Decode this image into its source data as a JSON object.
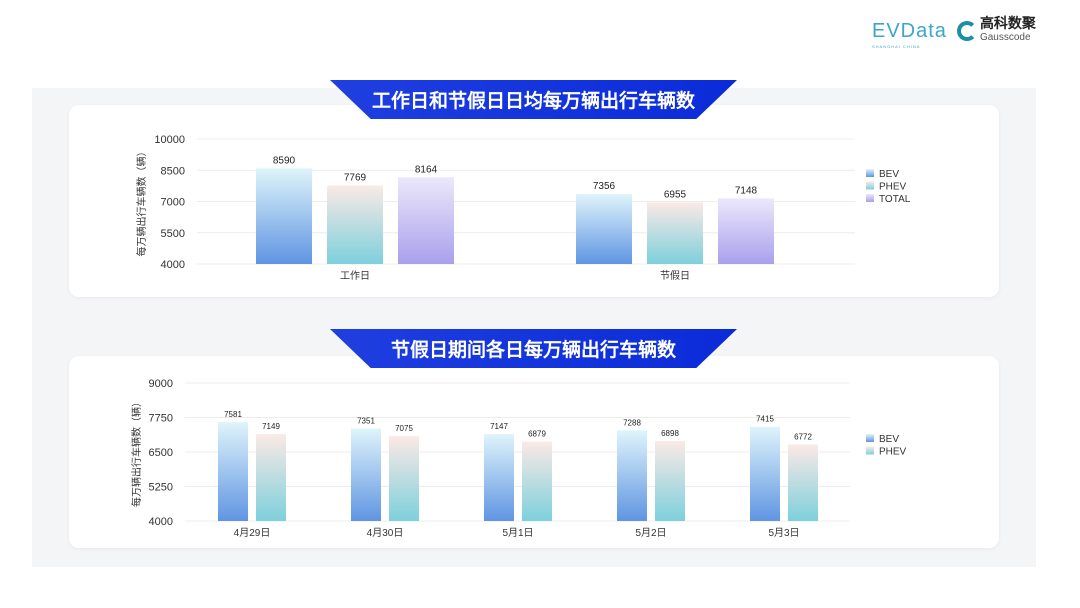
{
  "logos": {
    "evdata": "EVData",
    "evdata_sub": "SHANGHAI CHINA",
    "gauss_cn": "高科数聚",
    "gauss_en": "Gausscode"
  },
  "chart_data": [
    {
      "type": "bar",
      "title": "工作日和节假日日均每万辆出行车辆数",
      "ylabel": "每万辆出行车辆数（辆）",
      "categories": [
        "工作日",
        "节假日"
      ],
      "ylim": [
        4000,
        10000
      ],
      "yticks": [
        4000,
        5500,
        7000,
        8500,
        10000
      ],
      "grid": true,
      "legend": "right",
      "series": [
        {
          "name": "BEV",
          "values": [
            8590,
            7356
          ],
          "color": [
            "#dff4fb",
            "#5f95e2"
          ]
        },
        {
          "name": "PHEV",
          "values": [
            7769,
            6955
          ],
          "color": [
            "#fbe9e6",
            "#7dd0dc"
          ]
        },
        {
          "name": "TOTAL",
          "values": [
            8164,
            7148
          ],
          "color": [
            "#ece8fb",
            "#a9a0ec"
          ]
        }
      ]
    },
    {
      "type": "bar",
      "title": "节假日期间各日每万辆出行车辆数",
      "ylabel": "每万辆出行车辆数（辆）",
      "categories": [
        "4月29日",
        "4月30日",
        "5月1日",
        "5月2日",
        "5月3日"
      ],
      "ylim": [
        4000,
        9000
      ],
      "yticks": [
        4000,
        5250,
        6500,
        7750,
        9000
      ],
      "grid": true,
      "legend": "right",
      "series": [
        {
          "name": "BEV",
          "values": [
            7581,
            7351,
            7147,
            7288,
            7415
          ],
          "color": [
            "#dff4fb",
            "#5f95e2"
          ]
        },
        {
          "name": "PHEV",
          "values": [
            7149,
            7075,
            6879,
            6898,
            6772
          ],
          "color": [
            "#fbe9e6",
            "#7dd0dc"
          ]
        }
      ]
    }
  ]
}
